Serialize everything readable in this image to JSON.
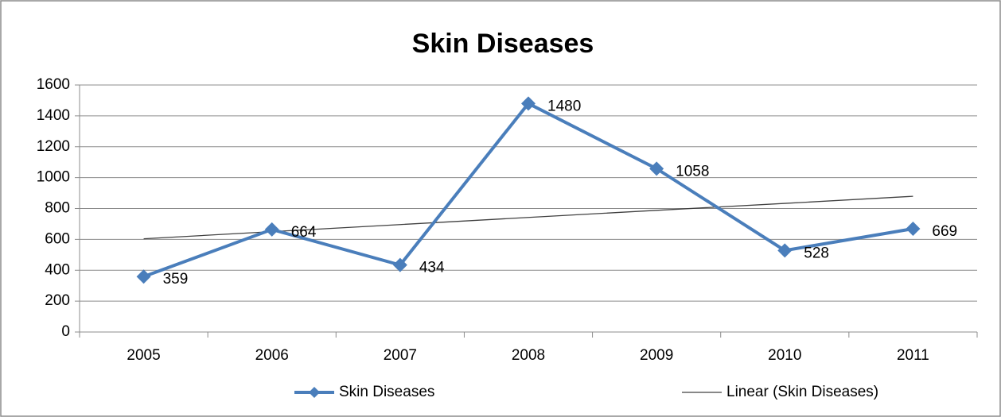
{
  "chart_data": {
    "type": "line",
    "title": "Skin Diseases",
    "categories": [
      "2005",
      "2006",
      "2007",
      "2008",
      "2009",
      "2010",
      "2011"
    ],
    "series": [
      {
        "name": "Skin Diseases",
        "color": "#4a7ebb",
        "values": [
          359,
          664,
          434,
          1480,
          1058,
          528,
          669
        ],
        "data_labels": true,
        "marker": "diamond"
      },
      {
        "name": "Linear (Skin Diseases)",
        "color": "#404040",
        "values": [
          604,
          650,
          696,
          742,
          788,
          833,
          879
        ]
      }
    ],
    "ylim": [
      0,
      1600
    ],
    "yticks": [
      0,
      200,
      400,
      600,
      800,
      1000,
      1200,
      1400,
      1600
    ],
    "grid": true,
    "legend": "bottom"
  }
}
